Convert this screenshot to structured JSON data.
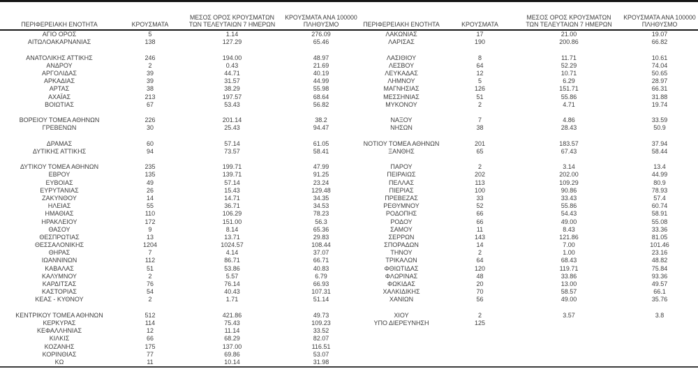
{
  "table": {
    "headers": {
      "region": "ΠΕΡΙΦΕΡΕΙΑΚΗ ΕΝΟΤΗΤΑ",
      "cases": "ΚΡΟΥΣΜΑΤΑ",
      "avg7_line1": "ΜΕΣΟΣ ΟΡΟΣ ΚΡΟΥΣΜΑΤΩΝ",
      "avg7_line2": "ΤΩΝ ΤΕΛΕΥΤΑΙΩΝ 7 ΗΜΕΡΩΝ",
      "per100k_line1": "ΚΡΟΥΣΜΑΤΑ ΑΝΑ 100000",
      "per100k_line2": "ΠΛΗΘΥΣΜΟ"
    },
    "rows": [
      {
        "left": [
          "ΑΓΙΟ ΟΡΟΣ",
          "5",
          "1.14",
          "276.09"
        ],
        "right": [
          "ΛΑΚΩΝΙΑΣ",
          "17",
          "21.00",
          "19.07"
        ]
      },
      {
        "left": [
          "ΑΙΤΩΛΟΑΚΑΡΝΑΝΙΑΣ",
          "138",
          "127.29",
          "65.46"
        ],
        "right": [
          "ΛΑΡΙΣΑΣ",
          "190",
          "200.86",
          "66.82"
        ]
      },
      {
        "left": [
          "",
          "",
          "",
          ""
        ],
        "right": [
          "",
          "",
          "",
          ""
        ]
      },
      {
        "left": [
          "ΑΝΑΤΟΛΙΚΗΣ ΑΤΤΙΚΗΣ",
          "246",
          "194.00",
          "48.97"
        ],
        "right": [
          "ΛΑΣΙΘΙΟΥ",
          "8",
          "11.71",
          "10.61"
        ]
      },
      {
        "left": [
          "ΑΝΔΡΟΥ",
          "2",
          "0.43",
          "21.69"
        ],
        "right": [
          "ΛΕΣΒΟΥ",
          "64",
          "52.29",
          "74.04"
        ]
      },
      {
        "left": [
          "ΑΡΓΟΛΙΔΑΣ",
          "39",
          "44.71",
          "40.19"
        ],
        "right": [
          "ΛΕΥΚΑΔΑΣ",
          "12",
          "10.71",
          "50.65"
        ]
      },
      {
        "left": [
          "ΑΡΚΑΔΙΑΣ",
          "39",
          "31.57",
          "44.99"
        ],
        "right": [
          "ΛΗΜΝΟΥ",
          "5",
          "6.29",
          "28.97"
        ]
      },
      {
        "left": [
          "ΑΡΤΑΣ",
          "38",
          "38.29",
          "55.98"
        ],
        "right": [
          "ΜΑΓΝΗΣΙΑΣ",
          "126",
          "151.71",
          "66.31"
        ]
      },
      {
        "left": [
          "ΑΧΑΪΑΣ",
          "213",
          "197.57",
          "68.64"
        ],
        "right": [
          "ΜΕΣΣΗΝΙΑΣ",
          "51",
          "55.86",
          "31.88"
        ]
      },
      {
        "left": [
          "ΒΟΙΩΤΙΑΣ",
          "67",
          "53.43",
          "56.82"
        ],
        "right": [
          "ΜΥΚΟΝΟΥ",
          "2",
          "4.71",
          "19.74"
        ]
      },
      {
        "left": [
          "",
          "",
          "",
          ""
        ],
        "right": [
          "",
          "",
          "",
          ""
        ]
      },
      {
        "left": [
          "ΒΟΡΕΙΟΥ ΤΟΜΕΑ ΑΘΗΝΩΝ",
          "226",
          "201.14",
          "38.2"
        ],
        "right": [
          "ΝΑΞΟΥ",
          "7",
          "4.86",
          "33.59"
        ]
      },
      {
        "left": [
          "ΓΡΕΒΕΝΩΝ",
          "30",
          "25.43",
          "94.47"
        ],
        "right": [
          "ΝΗΣΩΝ",
          "38",
          "28.43",
          "50.9"
        ]
      },
      {
        "left": [
          "",
          "",
          "",
          ""
        ],
        "right": [
          "",
          "",
          "",
          ""
        ]
      },
      {
        "left": [
          "ΔΡΑΜΑΣ",
          "60",
          "57.14",
          "61.05"
        ],
        "right": [
          "ΝΟΤΙΟΥ ΤΟΜΕΑ ΑΘΗΝΩΝ",
          "201",
          "183.57",
          "37.94"
        ]
      },
      {
        "left": [
          "ΔΥΤΙΚΗΣ ΑΤΤΙΚΗΣ",
          "94",
          "73.57",
          "58.41"
        ],
        "right": [
          "ΞΑΝΘΗΣ",
          "65",
          "67.43",
          "58.44"
        ]
      },
      {
        "left": [
          "",
          "",
          "",
          ""
        ],
        "right": [
          "",
          "",
          "",
          ""
        ]
      },
      {
        "left": [
          "ΔΥΤΙΚΟΥ ΤΟΜΕΑ ΑΘΗΝΩΝ",
          "235",
          "199.71",
          "47.99"
        ],
        "right": [
          "ΠΑΡΟΥ",
          "2",
          "3.14",
          "13.4"
        ]
      },
      {
        "left": [
          "ΕΒΡΟΥ",
          "135",
          "139.71",
          "91.25"
        ],
        "right": [
          "ΠΕΙΡΑΙΩΣ",
          "202",
          "202.00",
          "44.99"
        ]
      },
      {
        "left": [
          "ΕΥΒΟΙΑΣ",
          "49",
          "57.14",
          "23.24"
        ],
        "right": [
          "ΠΕΛΛΑΣ",
          "113",
          "109.29",
          "80.9"
        ]
      },
      {
        "left": [
          "ΕΥΡΥΤΑΝΙΑΣ",
          "26",
          "15.43",
          "129.48"
        ],
        "right": [
          "ΠΙΕΡΙΑΣ",
          "100",
          "90.86",
          "78.93"
        ]
      },
      {
        "left": [
          "ΖΑΚΥΝΘΟΥ",
          "14",
          "14.71",
          "34.35"
        ],
        "right": [
          "ΠΡΕΒΕΖΑΣ",
          "33",
          "33.43",
          "57.4"
        ]
      },
      {
        "left": [
          "ΗΛΕΙΑΣ",
          "55",
          "36.71",
          "34.53"
        ],
        "right": [
          "ΡΕΘΥΜΝΟΥ",
          "52",
          "55.86",
          "60.74"
        ]
      },
      {
        "left": [
          "ΗΜΑΘΙΑΣ",
          "110",
          "106.29",
          "78.23"
        ],
        "right": [
          "ΡΟΔΟΠΗΣ",
          "66",
          "54.43",
          "58.91"
        ]
      },
      {
        "left": [
          "ΗΡΑΚΛΕΙΟΥ",
          "172",
          "151.00",
          "56.3"
        ],
        "right": [
          "ΡΟΔΟΥ",
          "66",
          "49.00",
          "55.08"
        ]
      },
      {
        "left": [
          "ΘΑΣΟΥ",
          "9",
          "8.14",
          "65.36"
        ],
        "right": [
          "ΣΑΜΟΥ",
          "11",
          "8.43",
          "33.36"
        ]
      },
      {
        "left": [
          "ΘΕΣΠΡΩΤΙΑΣ",
          "13",
          "13.71",
          "29.83"
        ],
        "right": [
          "ΣΕΡΡΩΝ",
          "143",
          "121.86",
          "81.05"
        ]
      },
      {
        "left": [
          "ΘΕΣΣΑΛΟΝΙΚΗΣ",
          "1204",
          "1024.57",
          "108.44"
        ],
        "right": [
          "ΣΠΟΡΑΔΩΝ",
          "14",
          "7.00",
          "101.46"
        ]
      },
      {
        "left": [
          "ΘΗΡΑΣ",
          "7",
          "4.14",
          "37.07"
        ],
        "right": [
          "ΤΗΝΟΥ",
          "2",
          "1.00",
          "23.16"
        ]
      },
      {
        "left": [
          "ΙΩΑΝΝΙΝΩΝ",
          "112",
          "86.71",
          "66.71"
        ],
        "right": [
          "ΤΡΙΚΑΛΩΝ",
          "64",
          "68.43",
          "48.82"
        ]
      },
      {
        "left": [
          "ΚΑΒΑΛΑΣ",
          "51",
          "53.86",
          "40.83"
        ],
        "right": [
          "ΦΘΙΩΤΙΔΑΣ",
          "120",
          "119.71",
          "75.84"
        ]
      },
      {
        "left": [
          "ΚΑΛΥΜΝΟΥ",
          "2",
          "5.57",
          "6.79"
        ],
        "right": [
          "ΦΛΩΡΙΝΑΣ",
          "48",
          "33.86",
          "93.36"
        ]
      },
      {
        "left": [
          "ΚΑΡΔΙΤΣΑΣ",
          "76",
          "76.14",
          "66.93"
        ],
        "right": [
          "ΦΩΚΙΔΑΣ",
          "20",
          "13.00",
          "49.57"
        ]
      },
      {
        "left": [
          "ΚΑΣΤΟΡΙΑΣ",
          "54",
          "40.43",
          "107.31"
        ],
        "right": [
          "ΧΑΛΚΙΔΙΚΗΣ",
          "70",
          "58.57",
          "66.1"
        ]
      },
      {
        "left": [
          "ΚΕΑΣ - ΚΥΘΝΟΥ",
          "2",
          "1.71",
          "51.14"
        ],
        "right": [
          "ΧΑΝΙΩΝ",
          "56",
          "49.00",
          "35.76"
        ]
      },
      {
        "left": [
          "",
          "",
          "",
          ""
        ],
        "right": [
          "",
          "",
          "",
          ""
        ]
      },
      {
        "left": [
          "ΚΕΝΤΡΙΚΟΥ ΤΟΜΕΑ ΑΘΗΝΩΝ",
          "512",
          "421.86",
          "49.73"
        ],
        "right": [
          "ΧΙΟΥ",
          "2",
          "3.57",
          "3.8"
        ]
      },
      {
        "left": [
          "ΚΕΡΚΥΡΑΣ",
          "114",
          "75.43",
          "109.23"
        ],
        "right": [
          "ΥΠΟ ΔΙΕΡΕΥΝΗΣΗ",
          "125",
          "",
          ""
        ]
      },
      {
        "left": [
          "ΚΕΦΑΛΛΗΝΙΑΣ",
          "12",
          "11.14",
          "33.52"
        ],
        "right": [
          "",
          "",
          "",
          ""
        ]
      },
      {
        "left": [
          "ΚΙΛΚΙΣ",
          "66",
          "68.29",
          "82.07"
        ],
        "right": [
          "",
          "",
          "",
          ""
        ]
      },
      {
        "left": [
          "ΚΟΖΑΝΗΣ",
          "175",
          "137.00",
          "116.51"
        ],
        "right": [
          "",
          "",
          "",
          ""
        ]
      },
      {
        "left": [
          "ΚΟΡΙΝΘΙΑΣ",
          "77",
          "69.86",
          "53.07"
        ],
        "right": [
          "",
          "",
          "",
          ""
        ]
      },
      {
        "left": [
          "ΚΩ",
          "11",
          "10.14",
          "31.98"
        ],
        "right": [
          "",
          "",
          "",
          ""
        ]
      }
    ]
  }
}
